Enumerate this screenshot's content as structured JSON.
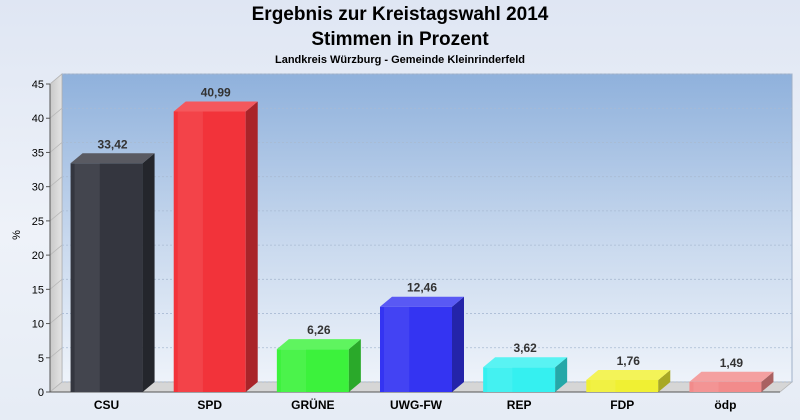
{
  "chart_data": {
    "type": "bar",
    "title": "Ergebnis zur Kreistagswahl 2014",
    "subtitle": "Stimmen in Prozent",
    "caption": "Landkreis Würzburg - Gemeinde Kleinrinderfeld",
    "xlabel": "",
    "ylabel": "%",
    "ylim": [
      0,
      45
    ],
    "yticks": [
      0,
      5,
      10,
      15,
      20,
      25,
      30,
      35,
      40,
      45
    ],
    "grid": true,
    "categories": [
      "CSU",
      "SPD",
      "GRÜNE",
      "UWG-FW",
      "REP",
      "FDP",
      "ödp"
    ],
    "values": [
      33.42,
      40.99,
      6.26,
      12.46,
      3.62,
      1.76,
      1.49
    ],
    "value_labels": [
      "33,42",
      "40,99",
      "6,26",
      "12,46",
      "3,62",
      "1,76",
      "1,49"
    ],
    "colors": [
      "#34363f",
      "#f2333a",
      "#3cf23c",
      "#3434f2",
      "#35f0f0",
      "#f0f033",
      "#f28b8b"
    ]
  }
}
